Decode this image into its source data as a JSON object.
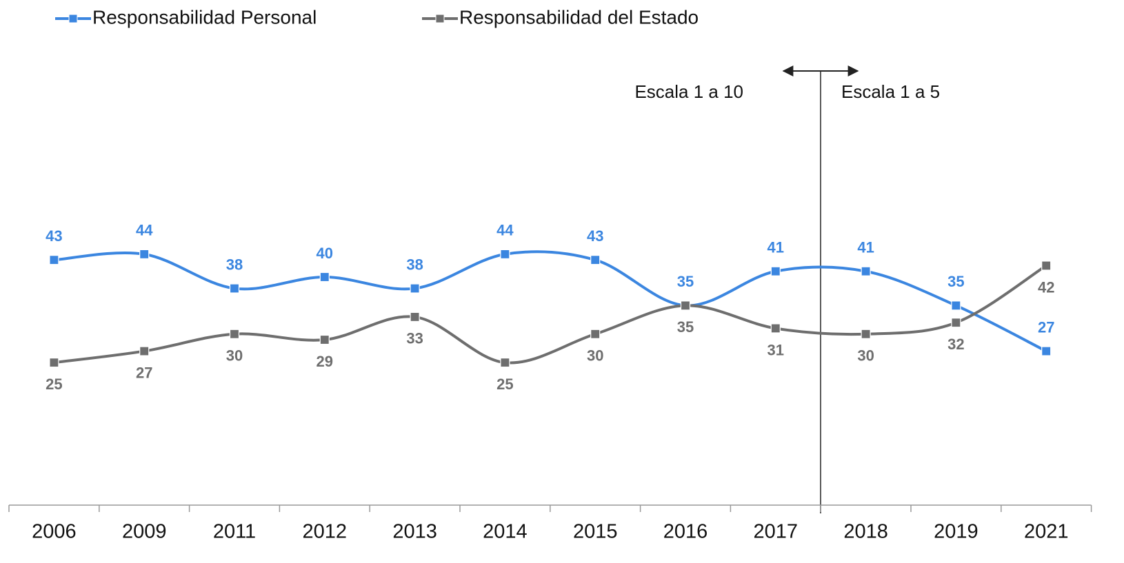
{
  "chart_data": {
    "type": "line",
    "categories": [
      "2006",
      "2009",
      "2011",
      "2012",
      "2013",
      "2014",
      "2015",
      "2016",
      "2017",
      "2018",
      "2019",
      "2021"
    ],
    "series": [
      {
        "name": "Responsabilidad Personal",
        "color": "#3b86e0",
        "values": [
          43,
          44,
          38,
          40,
          38,
          44,
          43,
          35,
          41,
          41,
          35,
          27
        ]
      },
      {
        "name": "Responsabilidad del Estado",
        "color": "#6e6e6e",
        "values": [
          25,
          27,
          30,
          29,
          33,
          25,
          30,
          35,
          31,
          30,
          32,
          42
        ]
      }
    ],
    "ylim": [
      0,
      80
    ],
    "annotations": [
      "Escala 1 a 10",
      "Escala 1 a 5"
    ],
    "smooth": true
  }
}
